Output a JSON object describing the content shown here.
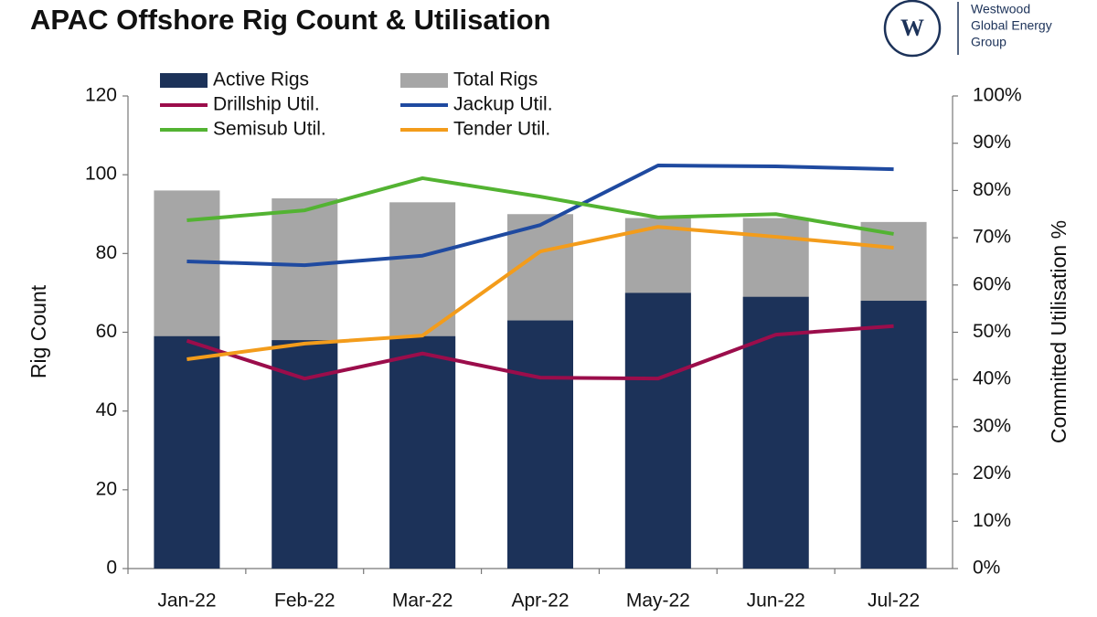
{
  "chart_data": {
    "type": "bar",
    "title": "APAC Offshore Rig Count & Utilisation",
    "categories": [
      "Jan-22",
      "Feb-22",
      "Mar-22",
      "Apr-22",
      "May-22",
      "Jun-22",
      "Jul-22"
    ],
    "series": [
      {
        "name": "Active Rigs",
        "type": "bar",
        "color": "#1c3259",
        "values": [
          59,
          58,
          59,
          63,
          70,
          69,
          68
        ]
      },
      {
        "name": "Total Rigs",
        "type": "bar",
        "color": "#a6a6a6",
        "values": [
          96,
          94,
          93,
          90,
          89,
          89,
          88
        ]
      },
      {
        "name": "Drillship Util.",
        "type": "line",
        "axis": "y2",
        "color": "#9b0d4b",
        "values": [
          48.2,
          40.2,
          45.5,
          40.4,
          40.2,
          49.5,
          51.3
        ]
      },
      {
        "name": "Jackup Util.",
        "type": "line",
        "axis": "y2",
        "color": "#1f4aa0",
        "values": [
          65,
          64.2,
          66.2,
          72.7,
          85.3,
          85.1,
          84.5
        ]
      },
      {
        "name": "Semisub Util.",
        "type": "line",
        "axis": "y2",
        "color": "#53b332",
        "values": [
          73.7,
          75.8,
          82.6,
          78.7,
          74.3,
          75,
          70.8
        ]
      },
      {
        "name": "Tender Util.",
        "type": "line",
        "axis": "y2",
        "color": "#f39c1b",
        "values": [
          44.3,
          47.6,
          49.3,
          67.1,
          72.3,
          70.2,
          67.9
        ]
      }
    ],
    "ylabel": "Rig Count",
    "y2label": "Committed Utilisation %",
    "ylim": [
      0,
      120
    ],
    "yticks": [
      0,
      20,
      40,
      60,
      80,
      100,
      120
    ],
    "y2lim": [
      0,
      100
    ],
    "y2ticks": [
      {
        "value": 0,
        "label": "0%"
      },
      {
        "value": 10,
        "label": "10%"
      },
      {
        "value": 20,
        "label": "20%"
      },
      {
        "value": 30,
        "label": "30%"
      },
      {
        "value": 40,
        "label": "40%"
      },
      {
        "value": 50,
        "label": "50%"
      },
      {
        "value": 60,
        "label": "60%"
      },
      {
        "value": 70,
        "label": "70%"
      },
      {
        "value": 80,
        "label": "80%"
      },
      {
        "value": 90,
        "label": "90%"
      },
      {
        "value": 100,
        "label": "100%"
      }
    ],
    "grid": false
  },
  "logo": {
    "mark": "W",
    "lines": [
      "Westwood",
      "Global Energy",
      "Group"
    ]
  }
}
